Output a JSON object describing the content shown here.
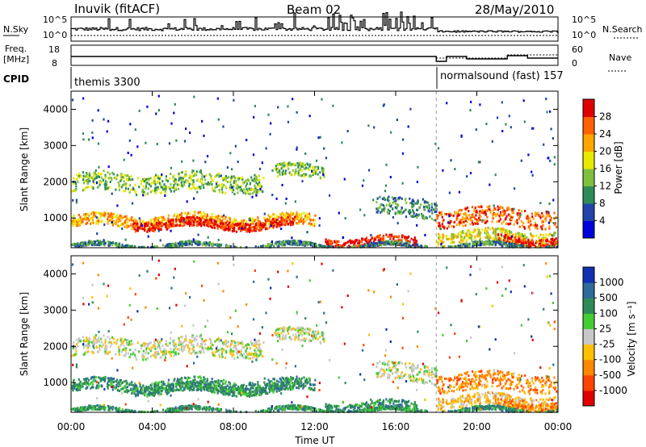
{
  "header": {
    "station": "Inuvik (fitACF)",
    "beam": "Beam 02",
    "date": "28/May/2010"
  },
  "sky_panel": {
    "left_label": "N.Sky",
    "right_label": "N.Search",
    "left_ticks": [
      "10^5",
      "10^0"
    ],
    "right_ticks": [
      "10^5",
      "10^0"
    ]
  },
  "freq_panel": {
    "left_label_line1": "Freq.",
    "left_label_line2": "[MHz]",
    "right_label": "Nave",
    "left_ticks": [
      "18",
      "8"
    ],
    "right_ticks": [
      "60",
      "0"
    ]
  },
  "cpid_panel": {
    "label": "CPID",
    "modes": [
      {
        "name": "themis 3300"
      },
      {
        "name": "normalsound (fast) 157"
      }
    ]
  },
  "colors": {
    "power_scale": [
      "#0000dd",
      "#2244aa",
      "#2e8b57",
      "#7fbf3f",
      "#e8e800",
      "#ffa500",
      "#ff6000",
      "#e00000"
    ],
    "velocity_scale": [
      "#1030b0",
      "#2e6b9a",
      "#2e8b57",
      "#44cc33",
      "#c8c8c8",
      "#ffc000",
      "#ff8800",
      "#ff4400",
      "#e00000"
    ]
  },
  "chart_data": [
    {
      "type": "heatmap",
      "panel": "power",
      "ylabel": "Slant Range [km]",
      "yticks": [
        "1000",
        "2000",
        "3000",
        "4000"
      ],
      "xticks": [
        "00:00",
        "04:00",
        "08:00",
        "12:00",
        "16:00",
        "20:00",
        "00:00"
      ],
      "xlim_hours": [
        0,
        24
      ],
      "ylim_km": [
        180,
        4500
      ],
      "colorbar": {
        "label": "Power [dB]",
        "ticks": [
          "4",
          "8",
          "12",
          "16",
          "20",
          "24",
          "28"
        ]
      },
      "mode_change_hour": 18
    },
    {
      "type": "heatmap",
      "panel": "velocity",
      "ylabel": "Slant Range [km]",
      "yticks": [
        "1000",
        "2000",
        "3000",
        "4000"
      ],
      "xticks": [
        "00:00",
        "04:00",
        "08:00",
        "12:00",
        "16:00",
        "20:00",
        "00:00"
      ],
      "xlabel": "Time UT",
      "xlim_hours": [
        0,
        24
      ],
      "ylim_km": [
        180,
        4500
      ],
      "colorbar": {
        "label": "Velocity [m s⁻¹]",
        "ticks": [
          "1000",
          "500",
          "100",
          "25",
          "-25",
          "-100",
          "-500",
          "-1000"
        ]
      }
    }
  ]
}
